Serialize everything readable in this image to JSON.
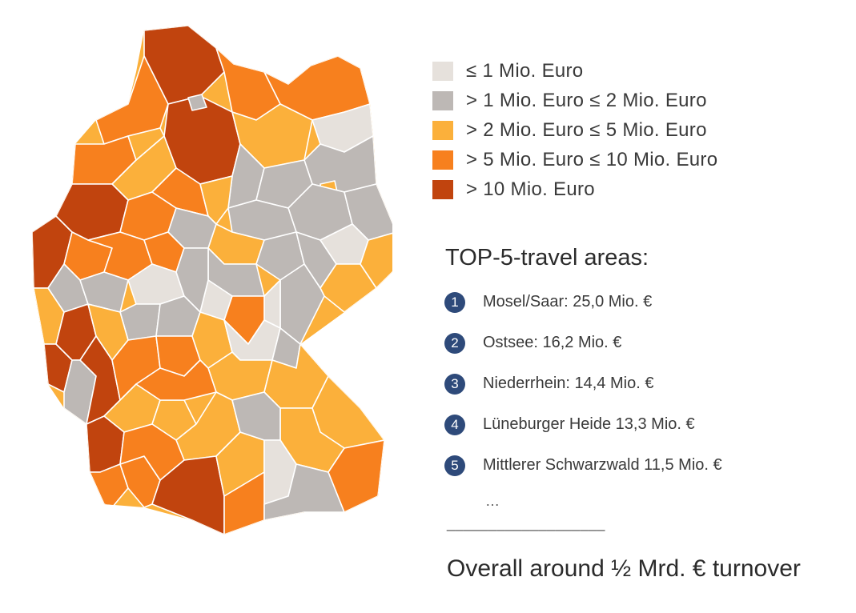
{
  "legend": [
    {
      "label": "≤ 1 Mio. Euro",
      "color": "#e6e1dc"
    },
    {
      "label": "> 1 Mio. Euro ≤ 2 Mio. Euro",
      "color": "#bdb8b5"
    },
    {
      "label": "> 2 Mio. Euro ≤ 5 Mio. Euro",
      "color": "#fbb03b"
    },
    {
      "label": "> 5 Mio. Euro ≤ 10 Mio. Euro",
      "color": "#f7801e"
    },
    {
      "label": "> 10 Mio. Euro",
      "color": "#c1440e"
    }
  ],
  "top": {
    "title": "TOP-5-travel areas:",
    "items": [
      {
        "num": "1",
        "label": "Mosel/Saar: 25,0 Mio. €"
      },
      {
        "num": "2",
        "label": "Ostsee: 16,2 Mio. €"
      },
      {
        "num": "3",
        "label": "Niederrhein: 14,4 Mio. €"
      },
      {
        "num": "4",
        "label": "Lüneburger Heide 13,3 Mio. €"
      },
      {
        "num": "5",
        "label": "Mittlerer Schwarzwald 11,5 Mio. €"
      }
    ],
    "ellipsis": "…",
    "divider": "___________________"
  },
  "overall": "Overall around ½ Mrd. € turnover",
  "map": {
    "regions": [
      {
        "name": "region-schleswig-holstein",
        "tier": 4
      },
      {
        "name": "region-ostsee-east",
        "tier": 3
      },
      {
        "name": "region-ostsee-west",
        "tier": 3
      },
      {
        "name": "region-nordsee",
        "tier": 3
      },
      {
        "name": "region-lueneburger-heide",
        "tier": 4
      },
      {
        "name": "region-hamburg",
        "tier": 1
      },
      {
        "name": "region-bremen",
        "tier": 1
      },
      {
        "name": "region-ostfriesland",
        "tier": 3
      },
      {
        "name": "region-emsland",
        "tier": 2
      },
      {
        "name": "region-oldenburg",
        "tier": 2
      },
      {
        "name": "region-mecklenburg-lakes",
        "tier": 2
      },
      {
        "name": "region-vorpommern",
        "tier": 0
      },
      {
        "name": "region-uckermark",
        "tier": 1
      },
      {
        "name": "region-prignitz",
        "tier": 1
      },
      {
        "name": "region-altmark",
        "tier": 1
      },
      {
        "name": "region-berlin",
        "tier": 2
      },
      {
        "name": "region-brandenburg-south",
        "tier": 1
      },
      {
        "name": "region-spreewald",
        "tier": 1
      },
      {
        "name": "region-lausitz",
        "tier": 0
      },
      {
        "name": "region-saxony-anhalt-north",
        "tier": 1
      },
      {
        "name": "region-harz",
        "tier": 2
      },
      {
        "name": "region-saxony-anhalt-south",
        "tier": 1
      },
      {
        "name": "region-leipzig",
        "tier": 1
      },
      {
        "name": "region-dresden",
        "tier": 2
      },
      {
        "name": "region-oberlausitz",
        "tier": 2
      },
      {
        "name": "region-erzgebirge",
        "tier": 1
      },
      {
        "name": "region-vogtland",
        "tier": 0
      },
      {
        "name": "region-thuringia-north",
        "tier": 1
      },
      {
        "name": "region-thuringia-central",
        "tier": 0
      },
      {
        "name": "region-thuringia-forest",
        "tier": 3
      },
      {
        "name": "region-niederrhein",
        "tier": 4
      },
      {
        "name": "region-muensterland",
        "tier": 4
      },
      {
        "name": "region-teutoburg",
        "tier": 3
      },
      {
        "name": "region-weserbergland",
        "tier": 3
      },
      {
        "name": "region-hannover",
        "tier": 2
      },
      {
        "name": "region-braunschweig",
        "tier": 1
      },
      {
        "name": "region-ruhr",
        "tier": 3
      },
      {
        "name": "region-sauerland",
        "tier": 3
      },
      {
        "name": "region-sauerland-east",
        "tier": 3
      },
      {
        "name": "region-rhineland",
        "tier": 1
      },
      {
        "name": "region-eifel",
        "tier": 2
      },
      {
        "name": "region-aachen",
        "tier": 4
      },
      {
        "name": "region-westerwald",
        "tier": 1
      },
      {
        "name": "region-north-hesse",
        "tier": 0
      },
      {
        "name": "region-central-hesse",
        "tier": 1
      },
      {
        "name": "region-rhoen",
        "tier": 1
      },
      {
        "name": "region-frankfurt",
        "tier": 1
      },
      {
        "name": "region-mosel-saar",
        "tier": 4
      },
      {
        "name": "region-hunsrueck",
        "tier": 2
      },
      {
        "name": "region-saarland",
        "tier": 1
      },
      {
        "name": "region-pfalz",
        "tier": 4
      },
      {
        "name": "region-odenwald",
        "tier": 3
      },
      {
        "name": "region-spessart",
        "tier": 3
      },
      {
        "name": "region-franconia",
        "tier": 2
      },
      {
        "name": "region-upper-franconia",
        "tier": 0
      },
      {
        "name": "region-fichtelgebirge",
        "tier": 1
      },
      {
        "name": "region-nuremberg",
        "tier": 2
      },
      {
        "name": "region-upper-palatinate",
        "tier": 2
      },
      {
        "name": "region-bavarian-forest",
        "tier": 2
      },
      {
        "name": "region-lower-bavaria",
        "tier": 2
      },
      {
        "name": "region-kraichgau",
        "tier": 2
      },
      {
        "name": "region-stuttgart",
        "tier": 2
      },
      {
        "name": "region-hohenlohe",
        "tier": 3
      },
      {
        "name": "region-schwaebische-alb",
        "tier": 2
      },
      {
        "name": "region-mittlerer-schwarzwald",
        "tier": 4
      },
      {
        "name": "region-suedschwarzwald",
        "tier": 3
      },
      {
        "name": "region-bodensee",
        "tier": 3
      },
      {
        "name": "region-oberschwaben",
        "tier": 3
      },
      {
        "name": "region-allgaeu",
        "tier": 4
      },
      {
        "name": "region-augsburg",
        "tier": 2
      },
      {
        "name": "region-munich",
        "tier": 1
      },
      {
        "name": "region-upper-bavaria",
        "tier": 0
      },
      {
        "name": "region-chiemsee",
        "tier": 3
      },
      {
        "name": "region-berchtesgaden",
        "tier": 1
      },
      {
        "name": "region-altmuehltal",
        "tier": 3
      }
    ]
  }
}
